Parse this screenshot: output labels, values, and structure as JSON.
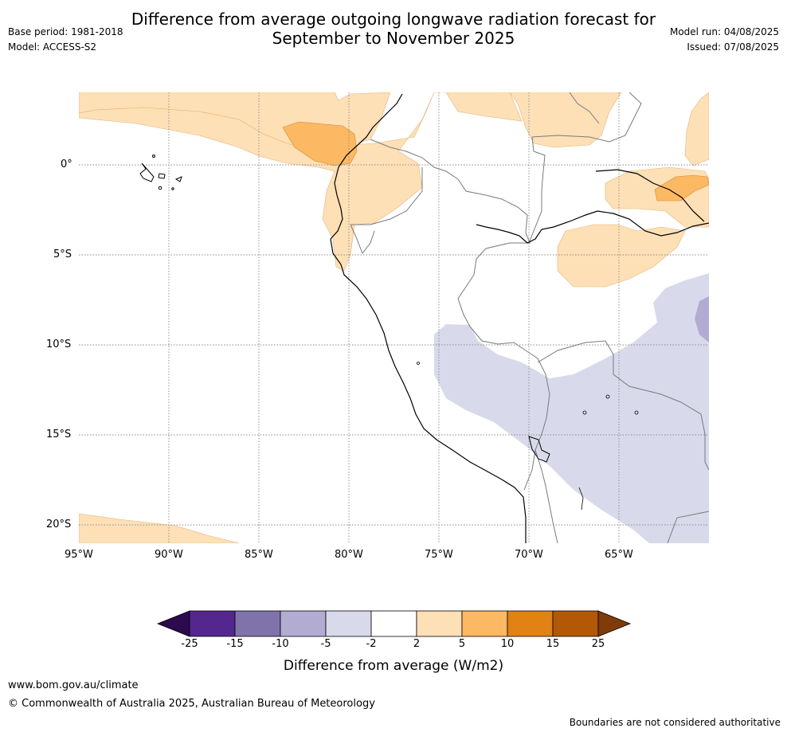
{
  "title_line1": "Difference from average outgoing longwave radiation forecast for",
  "title_line2": "September to November 2025",
  "left_info": {
    "base_period": "Base period: 1981-2018",
    "model": "Model: ACCESS-S2"
  },
  "right_info": {
    "model_run": "Model run: 04/08/2025",
    "issued": "Issued: 07/08/2025"
  },
  "map": {
    "lat_labels": [
      "0°",
      "5°S",
      "10°S",
      "15°S",
      "20°S"
    ],
    "lon_labels": [
      "95°W",
      "90°W",
      "85°W",
      "80°W",
      "75°W",
      "70°W",
      "65°W"
    ]
  },
  "colorbar": {
    "ticks": [
      "-25",
      "-15",
      "-10",
      "-5",
      "-2",
      "2",
      "5",
      "10",
      "15",
      "25"
    ],
    "colors": [
      "#2d0a4e",
      "#54278f",
      "#8073ac",
      "#b2abd2",
      "#d8daeb",
      "#ffffff",
      "#fee0b6",
      "#fdb863",
      "#e08214",
      "#b35806",
      "#7f3b08"
    ],
    "label": "Difference from average (W/m2)"
  },
  "footer": {
    "url": "www.bom.gov.au/climate",
    "copyright": "© Commonwealth of Australia 2025, Australian Bureau of Meteorology",
    "disclaimer": "Boundaries are not considered authoritative"
  }
}
